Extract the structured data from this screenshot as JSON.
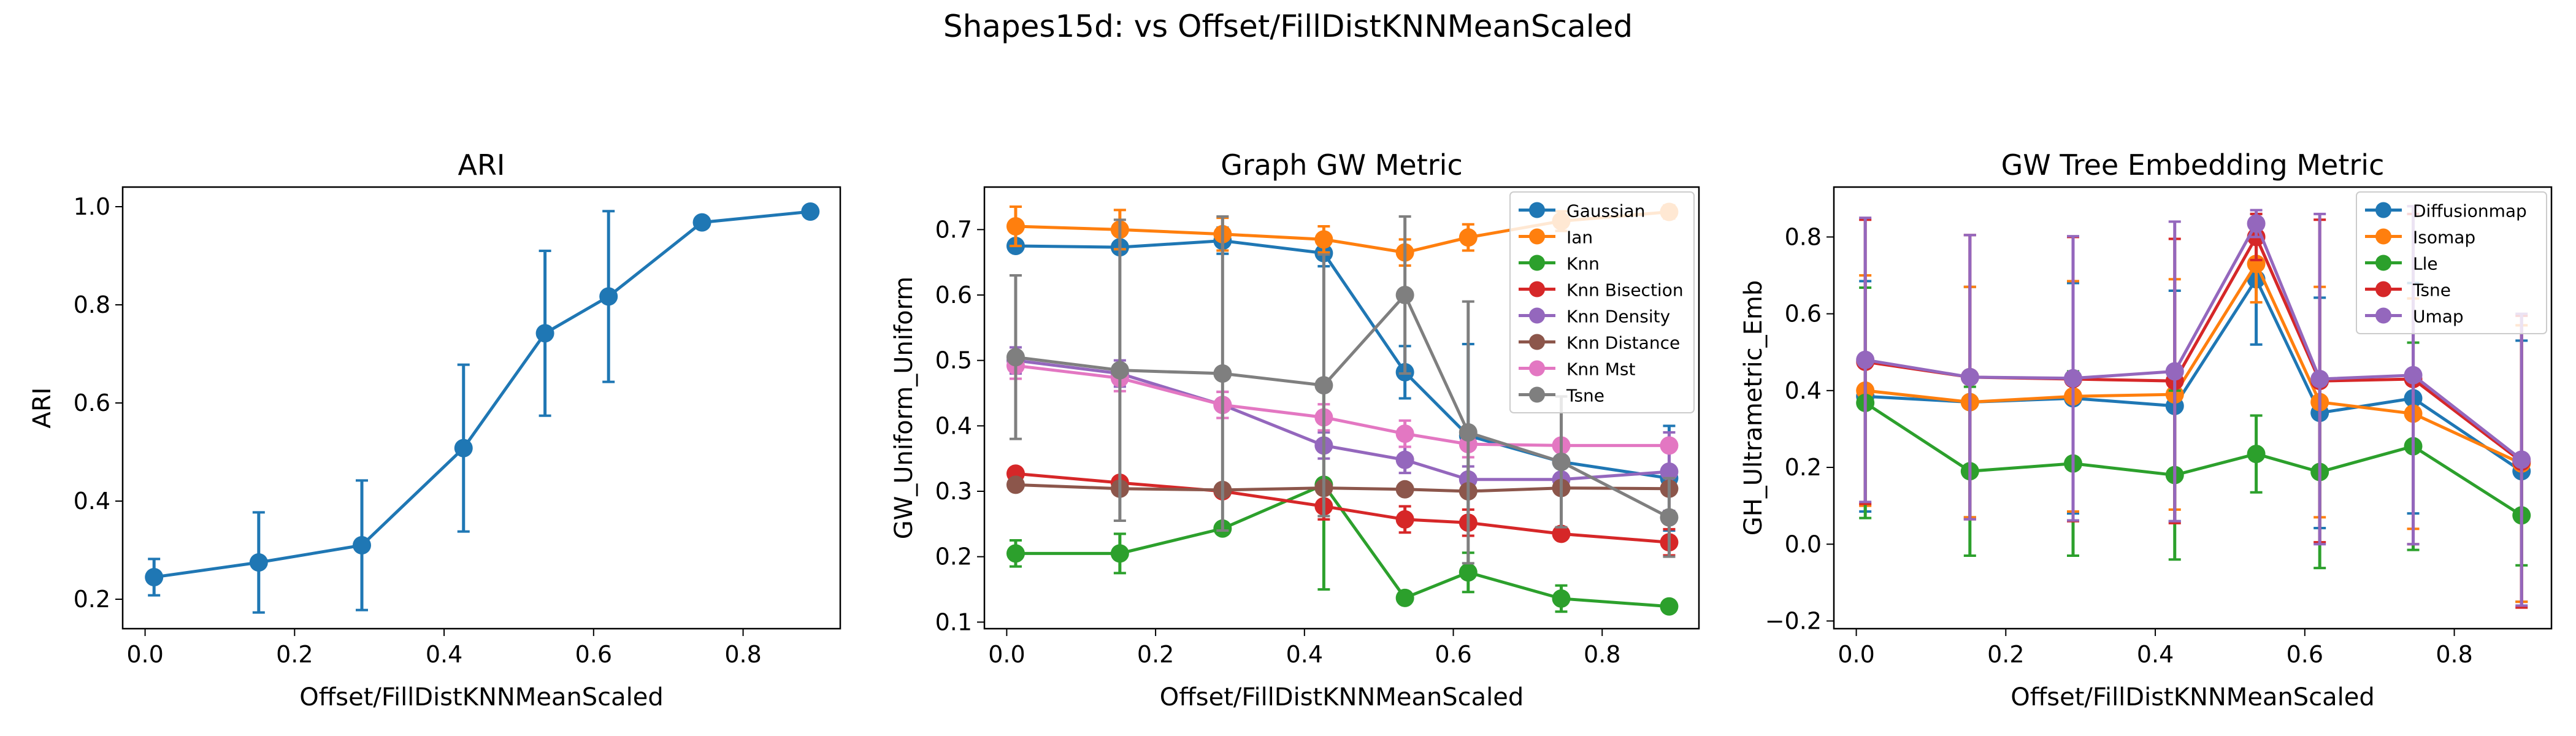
{
  "suptitle": "Shapes15d: vs Offset/FillDistKNNMeanScaled",
  "palette": {
    "blue": "#1f77b4",
    "orange": "#ff7f0e",
    "green": "#2ca02c",
    "red": "#d62728",
    "purple": "#9467bd",
    "brown": "#8c564b",
    "pink": "#e377c2",
    "gray": "#7f7f7f"
  },
  "chart_data": [
    {
      "type": "line",
      "title": "ARI",
      "xlabel": "Offset/FillDistKNNMeanScaled",
      "ylabel": "ARI",
      "xlim": [
        -0.03,
        0.93
      ],
      "ylim": [
        0.14,
        1.04
      ],
      "xticks": [
        0.0,
        0.2,
        0.4,
        0.6,
        0.8
      ],
      "yticks": [
        0.2,
        0.4,
        0.6,
        0.8,
        1.0
      ],
      "grid": false,
      "legend": null,
      "x": [
        0.012,
        0.152,
        0.29,
        0.426,
        0.535,
        0.62,
        0.745,
        0.89
      ],
      "series": [
        {
          "color": "#1f77b4",
          "values": [
            0.245,
            0.275,
            0.31,
            0.508,
            0.742,
            0.817,
            0.968,
            0.99
          ],
          "err": [
            0.037,
            0.102,
            0.132,
            0.17,
            0.168,
            0.174,
            0.0,
            0.0
          ]
        }
      ]
    },
    {
      "type": "line",
      "title": "Graph GW Metric",
      "xlabel": "Offset/FillDistKNNMeanScaled",
      "ylabel": "GW_Uniform_Uniform",
      "xlim": [
        -0.03,
        0.93
      ],
      "ylim": [
        0.09,
        0.765
      ],
      "xticks": [
        0.0,
        0.2,
        0.4,
        0.6,
        0.8
      ],
      "yticks": [
        0.1,
        0.2,
        0.3,
        0.4,
        0.5,
        0.6,
        0.7
      ],
      "grid": false,
      "legend": "top-right",
      "x": [
        0.012,
        0.152,
        0.29,
        0.426,
        0.535,
        0.62,
        0.745,
        0.89
      ],
      "series": [
        {
          "name": "Gaussian",
          "color": "#1f77b4",
          "values": [
            0.675,
            0.673,
            0.683,
            0.664,
            0.482,
            0.385,
            0.345,
            0.32
          ],
          "err": [
            0.0,
            0.0,
            0.02,
            0.02,
            0.04,
            0.14,
            0.03,
            0.08
          ]
        },
        {
          "name": "Ian",
          "color": "#ff7f0e",
          "values": [
            0.705,
            0.7,
            0.693,
            0.685,
            0.665,
            0.688,
            0.713,
            0.727
          ],
          "err": [
            0.03,
            0.03,
            0.025,
            0.02,
            0.02,
            0.02,
            0.015,
            0.01
          ]
        },
        {
          "name": "Knn",
          "color": "#2ca02c",
          "values": [
            0.205,
            0.205,
            0.243,
            0.31,
            0.137,
            0.176,
            0.136,
            0.124
          ],
          "err": [
            0.02,
            0.03,
            0.0,
            0.16,
            0.0,
            0.03,
            0.02,
            0.0
          ]
        },
        {
          "name": "Knn Bisection",
          "color": "#d62728",
          "values": [
            0.327,
            0.313,
            0.3,
            0.277,
            0.257,
            0.252,
            0.235,
            0.222
          ],
          "err": [
            0.0,
            0.0,
            0.0,
            0.02,
            0.02,
            0.02,
            0.0,
            0.02
          ]
        },
        {
          "name": "Knn Density",
          "color": "#9467bd",
          "values": [
            0.5,
            0.48,
            0.432,
            0.37,
            0.348,
            0.318,
            0.318,
            0.33
          ],
          "err": [
            0.02,
            0.02,
            0.02,
            0.02,
            0.02,
            0.02,
            0.02,
            0.06
          ]
        },
        {
          "name": "Knn Distance",
          "color": "#8c564b",
          "values": [
            0.31,
            0.304,
            0.302,
            0.305,
            0.303,
            0.3,
            0.305,
            0.304
          ],
          "err": [
            0.0,
            0.0,
            0.0,
            0.0,
            0.0,
            0.0,
            0.0,
            0.0
          ]
        },
        {
          "name": "Knn Mst",
          "color": "#e377c2",
          "values": [
            0.492,
            0.473,
            0.432,
            0.413,
            0.388,
            0.372,
            0.37,
            0.37
          ],
          "err": [
            0.02,
            0.02,
            0.02,
            0.02,
            0.02,
            0.02,
            0.0,
            0.0
          ]
        },
        {
          "name": "Tsne",
          "color": "#7f7f7f",
          "values": [
            0.505,
            0.485,
            0.48,
            0.462,
            0.6,
            0.39,
            0.345,
            0.26
          ],
          "err": [
            0.125,
            0.23,
            0.24,
            0.2,
            0.12,
            0.2,
            0.1,
            0.06
          ]
        }
      ]
    },
    {
      "type": "line",
      "title": "GW Tree Embedding Metric",
      "xlabel": "Offset/FillDistKNNMeanScaled",
      "ylabel": "GH_Ultrametric_Emb",
      "xlim": [
        -0.03,
        0.93
      ],
      "ylim": [
        -0.22,
        0.93
      ],
      "xticks": [
        0.0,
        0.2,
        0.4,
        0.6,
        0.8
      ],
      "yticks": [
        -0.2,
        0.0,
        0.2,
        0.4,
        0.6,
        0.8
      ],
      "grid": false,
      "legend": "top-right",
      "x": [
        0.012,
        0.152,
        0.29,
        0.426,
        0.535,
        0.62,
        0.745,
        0.89
      ],
      "series": [
        {
          "name": "Diffusionmap",
          "color": "#1f77b4",
          "values": [
            0.385,
            0.37,
            0.38,
            0.36,
            0.69,
            0.342,
            0.38,
            0.19
          ],
          "err": [
            0.3,
            0.3,
            0.3,
            0.3,
            0.17,
            0.3,
            0.3,
            0.34
          ]
        },
        {
          "name": "Isomap",
          "color": "#ff7f0e",
          "values": [
            0.4,
            0.37,
            0.385,
            0.39,
            0.73,
            0.37,
            0.34,
            0.21
          ],
          "err": [
            0.3,
            0.3,
            0.3,
            0.3,
            0.1,
            0.3,
            0.3,
            0.36
          ]
        },
        {
          "name": "Lle",
          "color": "#2ca02c",
          "values": [
            0.368,
            0.19,
            0.21,
            0.18,
            0.235,
            0.188,
            0.255,
            0.075
          ],
          "err": [
            0.3,
            0.22,
            0.24,
            0.22,
            0.1,
            0.25,
            0.27,
            0.13
          ]
        },
        {
          "name": "Tsne",
          "color": "#d62728",
          "values": [
            0.475,
            0.435,
            0.43,
            0.425,
            0.8,
            0.425,
            0.43,
            0.215
          ],
          "err": [
            0.37,
            0.37,
            0.37,
            0.37,
            0.06,
            0.42,
            0.43,
            0.38
          ]
        },
        {
          "name": "Umap",
          "color": "#9467bd",
          "values": [
            0.48,
            0.435,
            0.432,
            0.45,
            0.835,
            0.43,
            0.44,
            0.22
          ],
          "err": [
            0.37,
            0.37,
            0.37,
            0.39,
            0.035,
            0.43,
            0.44,
            0.38
          ]
        }
      ]
    }
  ]
}
